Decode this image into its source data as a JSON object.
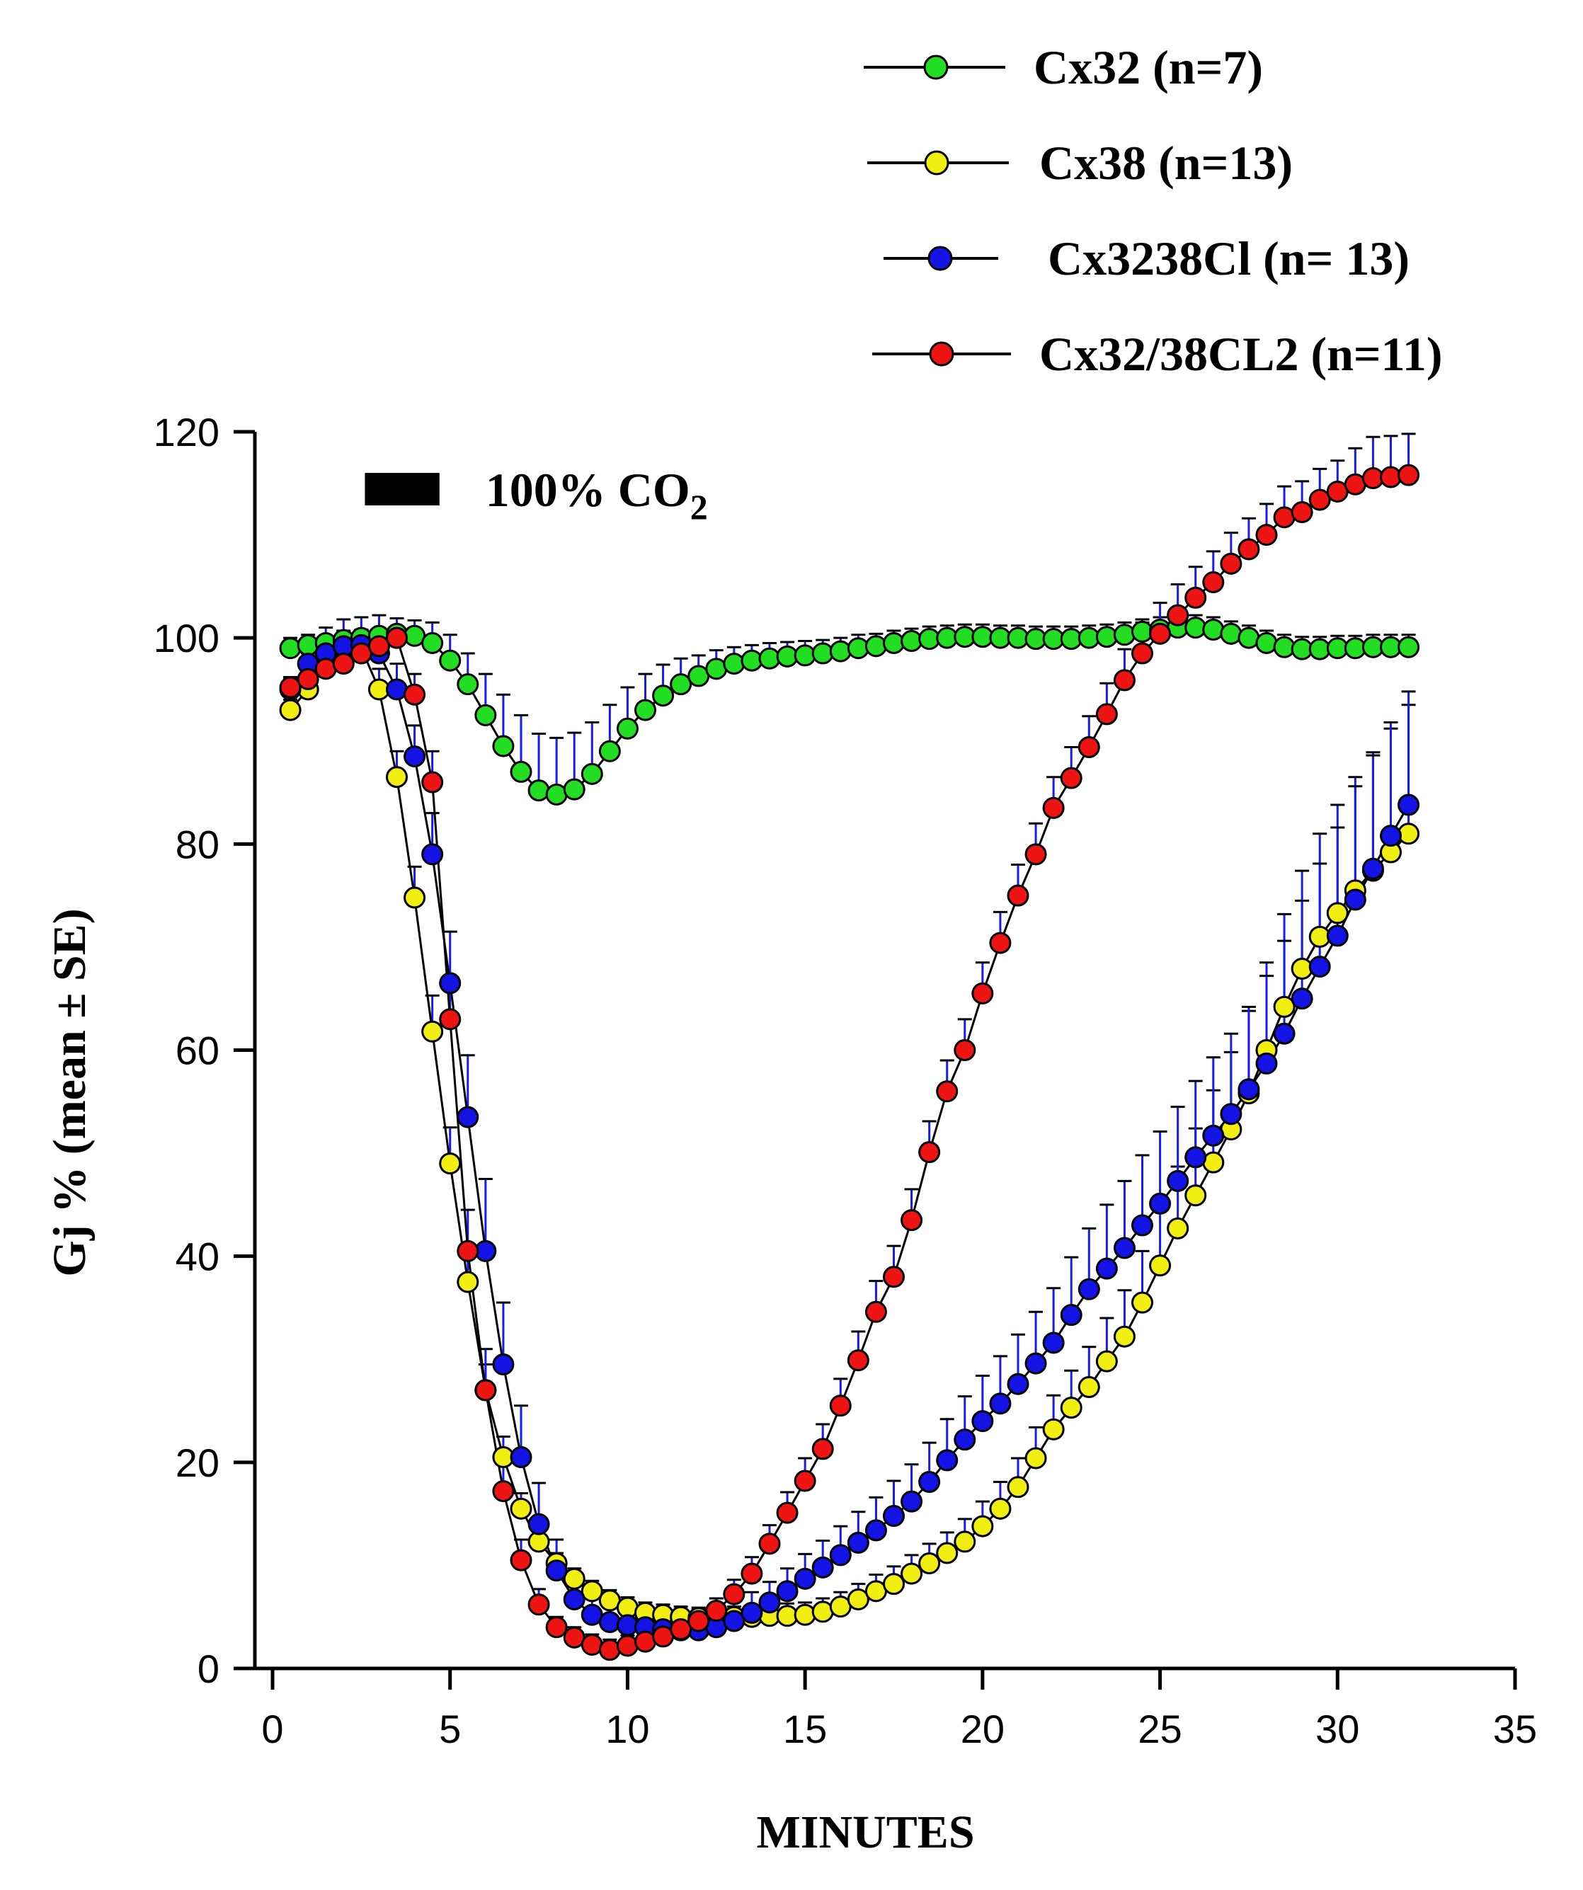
{
  "chart_data": {
    "type": "line",
    "title": "",
    "xlabel": "MINUTES",
    "ylabel": "Gj % (mean ± SE)",
    "xlim": [
      0,
      35
    ],
    "ylim": [
      0,
      120
    ],
    "xticks": [
      0,
      5,
      10,
      15,
      20,
      25,
      30,
      35
    ],
    "yticks": [
      0,
      20,
      40,
      60,
      80,
      100,
      120
    ],
    "grid": false,
    "legend_position": "top-right",
    "annotation": {
      "text": "100% CO",
      "subscript": "2",
      "bar_x": [
        3,
        5.5
      ],
      "bar_y": 114.5
    },
    "x": [
      0.5,
      1,
      1.5,
      2,
      2.5,
      3,
      3.5,
      4,
      4.5,
      5,
      5.5,
      6,
      6.5,
      7,
      7.5,
      8,
      8.5,
      9,
      9.5,
      10,
      10.5,
      11,
      11.5,
      12,
      12.5,
      13,
      13.5,
      14,
      14.5,
      15,
      15.5,
      16,
      16.5,
      17,
      17.5,
      18,
      18.5,
      19,
      19.5,
      20,
      20.5,
      21,
      21.5,
      22,
      22.5,
      23,
      23.5,
      24,
      24.5,
      25,
      25.5,
      26,
      26.5,
      27,
      27.5,
      28,
      28.5,
      29,
      29.5,
      30,
      30.5,
      31,
      31.5,
      32
    ],
    "series": [
      {
        "name": "Cx32 (n=7)",
        "color": "#22dd22",
        "error_color": "#1a1aee",
        "values": [
          99,
          99.3,
          99.5,
          99.8,
          100,
          100.2,
          100.4,
          100.2,
          99.5,
          97.8,
          95.5,
          92.5,
          89.5,
          87,
          85.2,
          84.8,
          85.3,
          86.8,
          89,
          91.2,
          93,
          94.4,
          95.5,
          96.3,
          97,
          97.5,
          97.8,
          98,
          98.2,
          98.3,
          98.5,
          98.7,
          99,
          99.2,
          99.5,
          99.7,
          99.9,
          100,
          100.1,
          100.1,
          100,
          100,
          99.9,
          99.9,
          99.9,
          100,
          100.1,
          100.3,
          100.6,
          100.8,
          101,
          101,
          100.8,
          100.4,
          100,
          99.5,
          99.1,
          98.9,
          98.9,
          99,
          99,
          99.1,
          99.1,
          99.1
        ],
        "errors": [
          1,
          1,
          1.5,
          2,
          2,
          2,
          1.5,
          1.5,
          2,
          2.5,
          3,
          4,
          5,
          5.5,
          5.5,
          5.5,
          5.5,
          5,
          4.5,
          4,
          3.5,
          3,
          2.5,
          2,
          1.8,
          1.6,
          1.5,
          1.5,
          1.4,
          1.4,
          1.3,
          1.3,
          1.3,
          1.2,
          1.2,
          1.2,
          1.2,
          1.2,
          1.2,
          1.2,
          1.2,
          1.2,
          1.2,
          1.2,
          1.2,
          1.2,
          1.2,
          1.2,
          1.2,
          1.2,
          1.2,
          1.2,
          1.2,
          1.2,
          1.2,
          1.2,
          1.2,
          1.2,
          1.2,
          1.2,
          1.2,
          1.2,
          1.2,
          1.2
        ]
      },
      {
        "name": "Cx38 (n=13)",
        "color": "#f2ee12",
        "error_color": "#1a1aee",
        "values": [
          93,
          95,
          97.5,
          99,
          99,
          95,
          86.5,
          74.8,
          61.8,
          49,
          37.5,
          27,
          20.5,
          15.5,
          12.3,
          10.2,
          8.7,
          7.5,
          6.6,
          5.9,
          5.4,
          5.2,
          5,
          4.9,
          4.9,
          5,
          5,
          5.1,
          5.1,
          5.2,
          5.5,
          6,
          6.7,
          7.5,
          8.2,
          9.2,
          10.2,
          11.2,
          12.3,
          13.8,
          15.5,
          17.6,
          20.4,
          23.2,
          25.3,
          27.3,
          29.8,
          32.2,
          35.5,
          39.1,
          42.7,
          45.9,
          49.1,
          52.3,
          55.8,
          60,
          64.2,
          67.9,
          71,
          73.3,
          75.5,
          77.4,
          79.2,
          81
        ],
        "errors": [
          1,
          1,
          1,
          1.5,
          1.5,
          2,
          2.5,
          3,
          3.5,
          3.5,
          3,
          2.5,
          2,
          1.5,
          1.2,
          1,
          1,
          1,
          1,
          1,
          1,
          1,
          1,
          1,
          1,
          1,
          1,
          1.2,
          1.2,
          1.2,
          1.3,
          1.4,
          1.5,
          1.6,
          1.7,
          1.8,
          1.9,
          2,
          2.2,
          2.4,
          2.6,
          2.8,
          3,
          3.3,
          3.6,
          3.9,
          4.2,
          4.5,
          5,
          5.5,
          6,
          6.5,
          7,
          7.5,
          8,
          8.5,
          9,
          9.5,
          10,
          10.5,
          11,
          11.5,
          12,
          12.5
        ]
      },
      {
        "name": "Cx3238Cl (n= 13)",
        "color": "#1313e6",
        "error_color": "#1a1aee",
        "values": [
          95,
          97.5,
          98.5,
          99.2,
          99.3,
          98.5,
          95,
          88.5,
          79,
          66.5,
          53.5,
          40.5,
          29.5,
          20.5,
          14,
          9.5,
          6.7,
          5.2,
          4.5,
          4.2,
          4,
          3.8,
          3.7,
          3.7,
          4,
          4.6,
          5.4,
          6.4,
          7.5,
          8.7,
          9.8,
          11,
          12.2,
          13.4,
          14.8,
          16.2,
          18.1,
          20.2,
          22.2,
          24,
          25.7,
          27.6,
          29.6,
          31.6,
          34.3,
          36.8,
          38.8,
          40.8,
          43,
          45.1,
          47.3,
          49.6,
          51.7,
          53.8,
          56.2,
          58.7,
          61.6,
          65,
          68.1,
          71.1,
          74.6,
          77.6,
          80.8,
          83.8
        ],
        "errors": [
          1,
          1,
          1,
          1.5,
          1.5,
          2,
          2.5,
          3,
          4,
          5,
          6,
          7,
          6,
          5,
          4,
          3,
          2.5,
          2,
          2,
          2,
          2,
          2,
          2,
          2,
          2,
          2,
          2,
          2,
          2.2,
          2.4,
          2.6,
          2.8,
          3,
          3.2,
          3.4,
          3.6,
          3.8,
          4,
          4.2,
          4.4,
          4.6,
          4.8,
          5,
          5.3,
          5.6,
          5.9,
          6.2,
          6.5,
          6.8,
          7,
          7.2,
          7.4,
          7.6,
          7.8,
          8,
          8.5,
          9,
          9.5,
          10,
          10.5,
          11,
          11,
          11,
          11
        ]
      },
      {
        "name": "Cx32/38CL2 (n=11)",
        "color": "#ee1414",
        "error_color": "#1a1aee",
        "values": [
          95.2,
          96,
          97,
          97.5,
          98.5,
          99.2,
          100,
          94.5,
          86,
          63,
          40.5,
          27,
          17.2,
          10.5,
          6.2,
          4,
          3,
          2.3,
          1.8,
          2.2,
          2.6,
          3.1,
          3.8,
          4.6,
          5.6,
          7.2,
          9.2,
          12.1,
          15.1,
          18.2,
          21.3,
          25.5,
          29.9,
          34.6,
          38,
          43.5,
          50.1,
          56,
          60,
          65.5,
          70.4,
          75,
          79,
          83.5,
          86.4,
          89.4,
          92.6,
          95.9,
          98.5,
          100.4,
          102.2,
          103.9,
          105.4,
          107.2,
          108.6,
          110,
          111.7,
          112.2,
          113.4,
          114.2,
          114.9,
          115.5,
          115.6,
          115.8
        ],
        "errors": [
          1,
          1,
          1,
          1,
          1,
          1,
          1,
          2,
          3,
          4,
          4,
          4,
          3,
          2,
          1.5,
          1,
          1,
          1,
          1,
          1,
          1,
          1,
          1,
          1,
          1.2,
          1.4,
          1.6,
          1.8,
          2,
          2.2,
          2.4,
          2.6,
          2.8,
          3,
          3,
          3,
          3,
          3,
          3,
          3,
          3,
          3,
          3,
          3,
          3,
          3,
          3,
          3,
          3,
          3,
          3,
          3,
          3,
          3,
          3,
          3,
          3,
          3,
          3,
          3,
          3.5,
          4,
          4,
          4
        ]
      }
    ]
  }
}
